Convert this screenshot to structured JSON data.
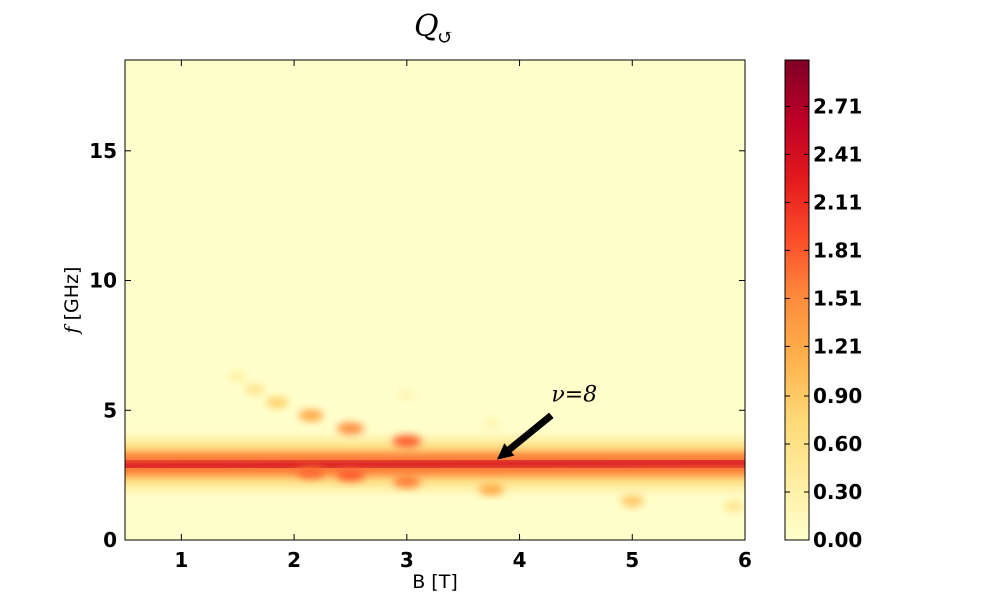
{
  "chart_data": {
    "type": "heatmap",
    "title": "Q",
    "title_subscript": "↺",
    "xlabel": "B [T]",
    "ylabel_symbol": "f",
    "ylabel_unit": " [GHz]",
    "xlim": [
      0.5,
      6.0
    ],
    "ylim": [
      0,
      18.5
    ],
    "x_ticks": [
      1,
      2,
      3,
      4,
      5,
      6
    ],
    "y_ticks": [
      0,
      5,
      10,
      15
    ],
    "colormap": "YlOrRd",
    "colormap_stops": [
      "#ffffcc",
      "#ffeda0",
      "#fed976",
      "#feb24c",
      "#fd8d3c",
      "#fc4e2a",
      "#e31a1c",
      "#bd0026",
      "#800026"
    ],
    "colorbar": {
      "min": 0.0,
      "max": 3.0,
      "ticks": [
        "0.00",
        "0.30",
        "0.60",
        "0.90",
        "1.21",
        "1.51",
        "1.81",
        "2.11",
        "2.41",
        "2.71"
      ],
      "tick_values": [
        0.0,
        0.3,
        0.6,
        0.9,
        1.21,
        1.51,
        1.81,
        2.11,
        2.41,
        2.71
      ]
    },
    "features": {
      "main_band": {
        "x_range": [
          0.5,
          6.0
        ],
        "f_start": 2.85,
        "f_end": 3.0,
        "intensity": 2.4
      },
      "upper_dots": [
        {
          "B": 1.5,
          "f": 6.3,
          "value": 0.3
        },
        {
          "B": 1.65,
          "f": 5.8,
          "value": 0.5
        },
        {
          "B": 1.85,
          "f": 5.3,
          "value": 0.8
        },
        {
          "B": 2.15,
          "f": 4.8,
          "value": 1.2
        },
        {
          "B": 2.5,
          "f": 4.3,
          "value": 1.5
        },
        {
          "B": 3.0,
          "f": 3.8,
          "value": 1.8
        },
        {
          "B": 3.0,
          "f": 5.6,
          "value": 0.2
        },
        {
          "B": 3.75,
          "f": 4.5,
          "value": 0.2
        }
      ],
      "lower_dots": [
        {
          "B": 2.15,
          "f": 2.6,
          "value": 1.7
        },
        {
          "B": 2.5,
          "f": 2.5,
          "value": 1.8
        },
        {
          "B": 3.0,
          "f": 2.25,
          "value": 1.6
        },
        {
          "B": 3.75,
          "f": 1.95,
          "value": 1.2
        },
        {
          "B": 5.0,
          "f": 1.5,
          "value": 0.9
        },
        {
          "B": 5.9,
          "f": 1.3,
          "value": 0.5
        }
      ]
    },
    "annotation": {
      "text": "ν=8",
      "B": 3.8,
      "f": 3.1,
      "text_B": 4.3,
      "text_f": 5.5
    }
  }
}
